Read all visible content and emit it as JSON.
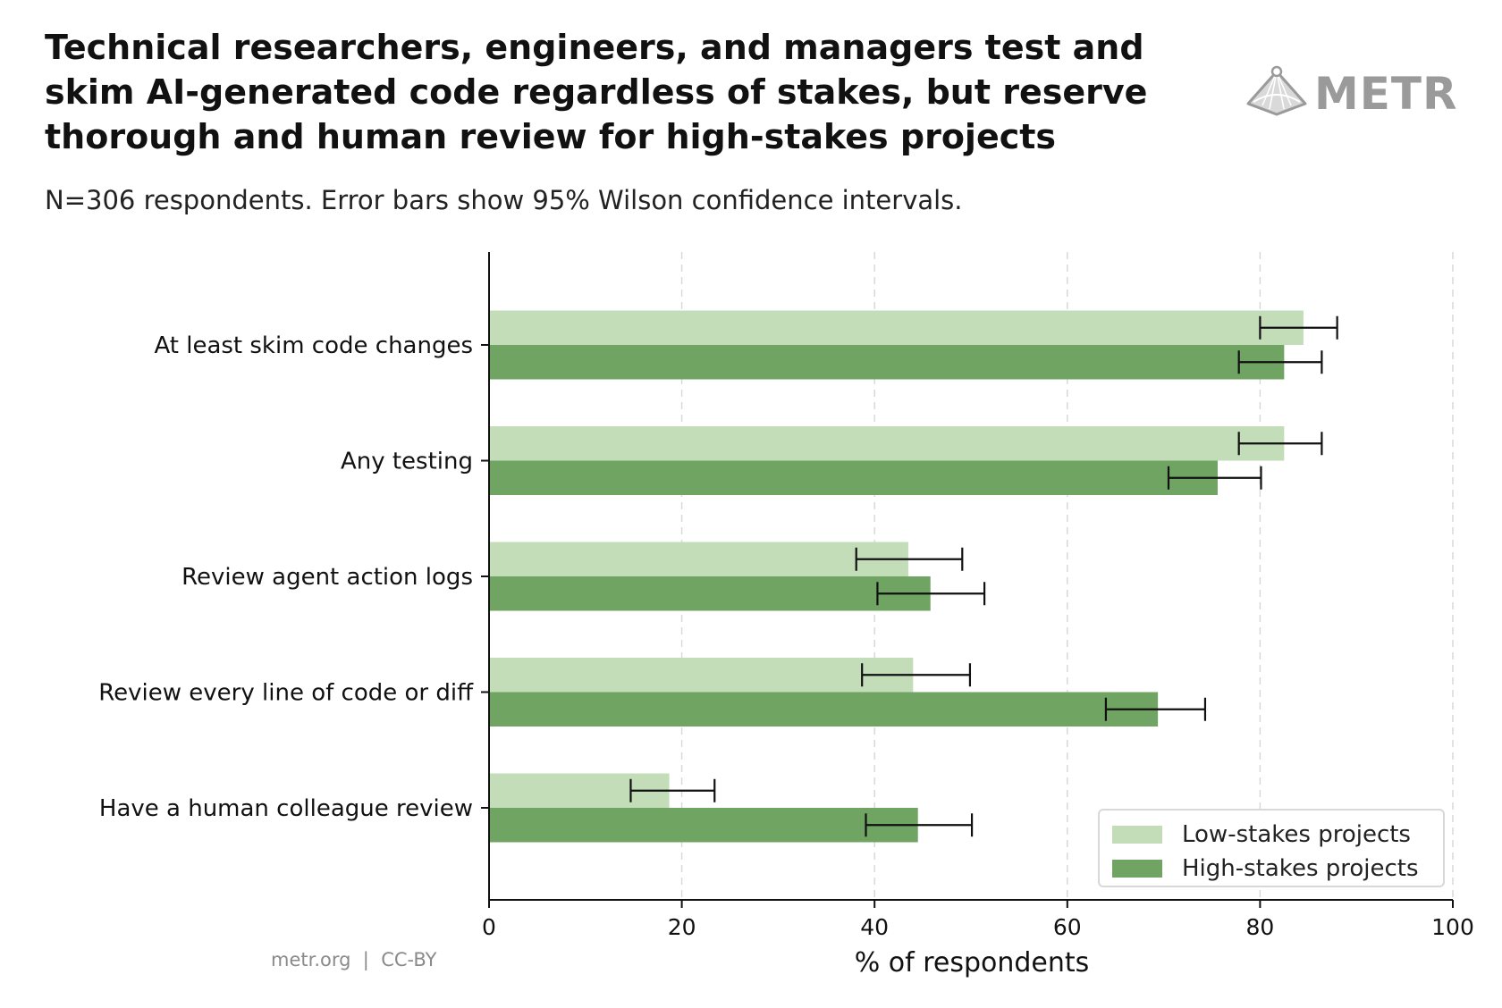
{
  "header": {
    "title": "Technical researchers, engineers, and managers test and skim AI-generated code regardless of stakes, but reserve thorough and human review for high-stakes projects",
    "subtitle": "N=306 respondents. Error bars show 95% Wilson confidence intervals.",
    "logo_text": "METR"
  },
  "footer": {
    "text": "metr.org  |  CC-BY"
  },
  "colors": {
    "low": "#c4ddb9",
    "high": "#6fa463",
    "axis": "#111111",
    "grid": "#d9d9d9"
  },
  "chart_data": {
    "type": "bar",
    "orientation": "horizontal",
    "categories": [
      "At least skim code changes",
      "Any testing",
      "Review agent action logs",
      "Review every line of code or diff",
      "Have a human colleague review"
    ],
    "series": [
      {
        "name": "Low-stakes projects",
        "values": [
          84.5,
          82.5,
          43.5,
          44.0,
          18.7
        ],
        "ci_low": [
          80.0,
          77.8,
          38.1,
          38.7,
          14.7
        ],
        "ci_high": [
          88.0,
          86.4,
          49.1,
          49.9,
          23.4
        ]
      },
      {
        "name": "High-stakes projects",
        "values": [
          82.5,
          75.6,
          45.8,
          69.4,
          44.5
        ],
        "ci_low": [
          77.8,
          70.5,
          40.3,
          64.0,
          39.1
        ],
        "ci_high": [
          86.4,
          80.1,
          51.4,
          74.3,
          50.1
        ]
      }
    ],
    "xlabel": "% of respondents",
    "xlim": [
      0,
      100
    ],
    "xticks": [
      "0",
      "20",
      "40",
      "60",
      "80",
      "100"
    ],
    "grid": "vertical dashed",
    "legend": "bottom-right"
  }
}
